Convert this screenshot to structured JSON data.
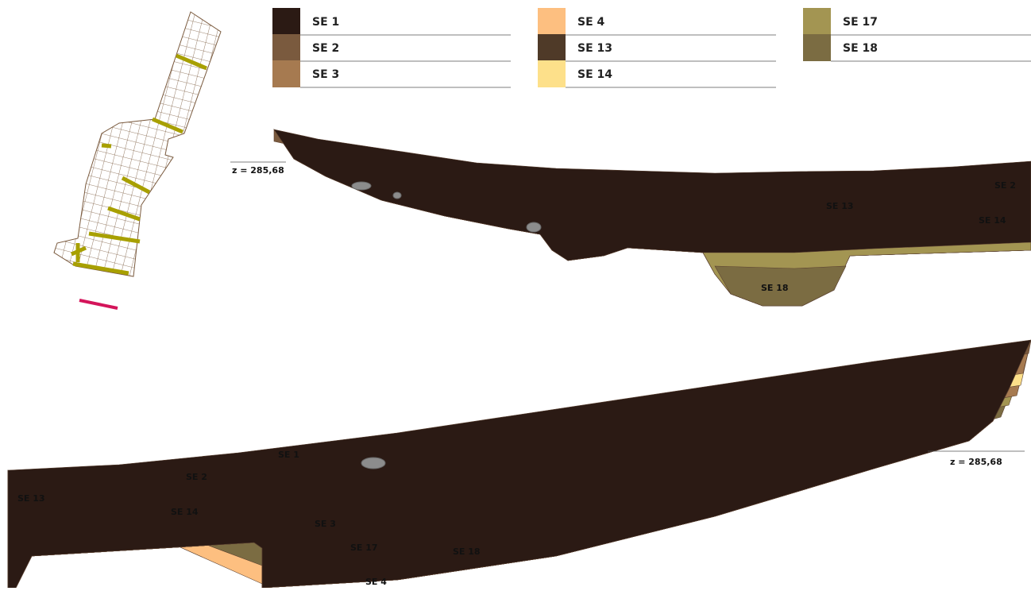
{
  "legend": [
    {
      "label": "SE 1",
      "color": "#2b1a14"
    },
    {
      "label": "SE 2",
      "color": "#7a5a3e"
    },
    {
      "label": "SE 3",
      "color": "#a67a50"
    },
    {
      "label": "SE 4",
      "color": "#fdbf80"
    },
    {
      "label": "SE 13",
      "color": "#4f3a28"
    },
    {
      "label": "SE 14",
      "color": "#fde08a"
    },
    {
      "label": "SE 17",
      "color": "#a39552"
    },
    {
      "label": "SE 18",
      "color": "#7b6c42"
    }
  ],
  "section_1": {
    "elevation": "z = 285,68",
    "labels": [
      "SE 2",
      "SE 13",
      "SE 14",
      "SE 18"
    ]
  },
  "section_2": {
    "elevation": "z = 285,68",
    "labels": [
      "SE 1",
      "SE 2",
      "SE 13",
      "SE 14",
      "SE 3",
      "SE 17",
      "SE 18",
      "SE 4"
    ]
  }
}
